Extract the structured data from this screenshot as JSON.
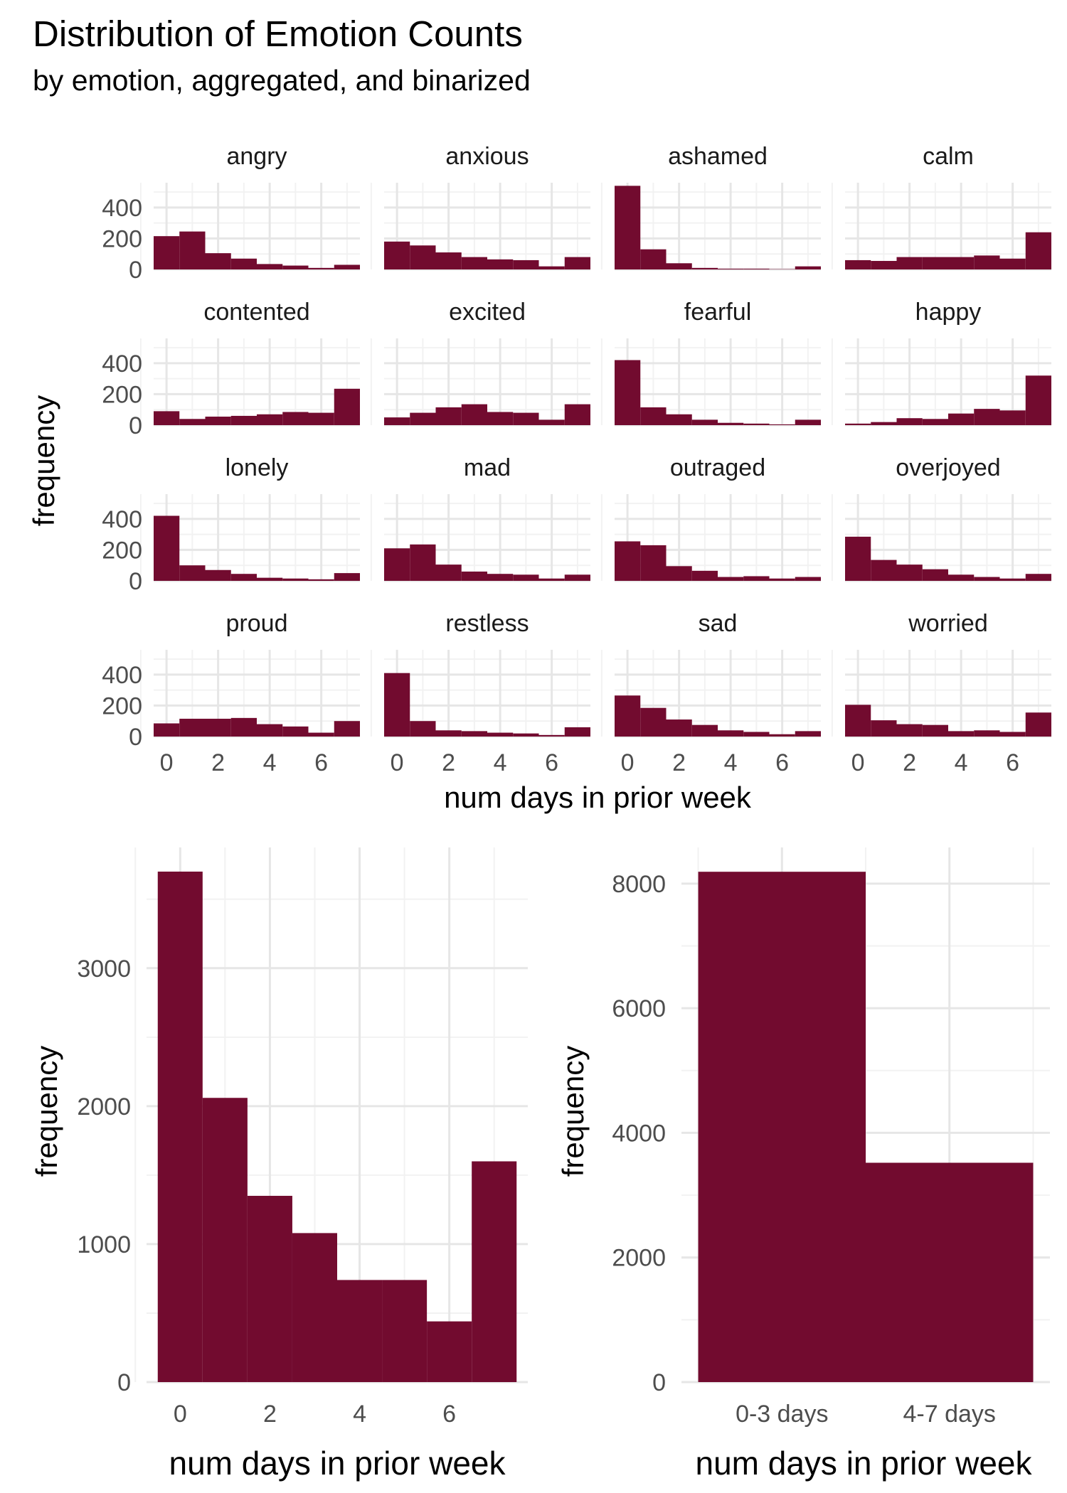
{
  "title": "Distribution of Emotion Counts",
  "subtitle": "by emotion, aggregated, and binarized",
  "colors": {
    "bar": "#720b2f",
    "grid_major": "#e6e6e6",
    "grid_minor": "#f2f2f2",
    "tick_text": "#4d4d4d"
  },
  "chart_data": [
    {
      "type": "bar",
      "layout": "facet-grid-4x4",
      "bins": [
        0,
        1,
        2,
        3,
        4,
        5,
        6,
        7
      ],
      "xlabel": "num days in prior week",
      "ylabel": "frequency",
      "x_ticks": [
        "0",
        "2",
        "4",
        "6"
      ],
      "y_ticks": [
        "0",
        "200",
        "400"
      ],
      "xlim": [
        -0.5,
        7.5
      ],
      "ylim": [
        0,
        560
      ],
      "grid": true,
      "series": [
        {
          "name": "angry",
          "values": [
            215,
            245,
            105,
            70,
            35,
            25,
            10,
            30
          ]
        },
        {
          "name": "anxious",
          "values": [
            180,
            155,
            110,
            80,
            65,
            60,
            20,
            80
          ]
        },
        {
          "name": "ashamed",
          "values": [
            540,
            130,
            40,
            10,
            5,
            5,
            2,
            20
          ]
        },
        {
          "name": "calm",
          "values": [
            60,
            55,
            80,
            80,
            80,
            90,
            70,
            240
          ]
        },
        {
          "name": "contented",
          "values": [
            90,
            40,
            55,
            60,
            70,
            85,
            80,
            235
          ]
        },
        {
          "name": "excited",
          "values": [
            50,
            80,
            115,
            135,
            85,
            80,
            35,
            135
          ]
        },
        {
          "name": "fearful",
          "values": [
            420,
            115,
            70,
            35,
            15,
            10,
            5,
            35
          ]
        },
        {
          "name": "happy",
          "values": [
            10,
            20,
            45,
            40,
            75,
            105,
            95,
            320
          ]
        },
        {
          "name": "lonely",
          "values": [
            420,
            100,
            70,
            45,
            20,
            15,
            10,
            50
          ]
        },
        {
          "name": "mad",
          "values": [
            210,
            235,
            105,
            60,
            45,
            40,
            15,
            40
          ]
        },
        {
          "name": "outraged",
          "values": [
            255,
            230,
            95,
            65,
            25,
            30,
            15,
            25
          ]
        },
        {
          "name": "overjoyed",
          "values": [
            285,
            135,
            105,
            75,
            40,
            25,
            15,
            45
          ]
        },
        {
          "name": "proud",
          "values": [
            85,
            115,
            115,
            120,
            80,
            65,
            25,
            100
          ]
        },
        {
          "name": "restless",
          "values": [
            410,
            100,
            40,
            35,
            25,
            20,
            10,
            60
          ]
        },
        {
          "name": "sad",
          "values": [
            265,
            185,
            110,
            75,
            40,
            30,
            15,
            35
          ]
        },
        {
          "name": "worried",
          "values": [
            205,
            105,
            80,
            75,
            35,
            40,
            30,
            155
          ]
        }
      ]
    },
    {
      "type": "bar",
      "bins": [
        0,
        1,
        2,
        3,
        4,
        5,
        6,
        7
      ],
      "values": [
        3700,
        2060,
        1350,
        1080,
        740,
        740,
        440,
        1600
      ],
      "xlabel": "num days in prior week",
      "ylabel": "frequency",
      "x_ticks": [
        "0",
        "2",
        "4",
        "6"
      ],
      "y_ticks": [
        "0",
        "1000",
        "2000",
        "3000"
      ],
      "xlim": [
        -0.75,
        7.75
      ],
      "ylim": [
        0,
        3875
      ],
      "grid": true
    },
    {
      "type": "bar",
      "categories": [
        "0-3 days",
        "4-7 days"
      ],
      "values": [
        8190,
        3520
      ],
      "xlabel": "num days in prior week",
      "ylabel": "frequency",
      "y_ticks": [
        "0",
        "2000",
        "4000",
        "6000",
        "8000"
      ],
      "ylim": [
        0,
        8580
      ],
      "grid": true
    }
  ]
}
